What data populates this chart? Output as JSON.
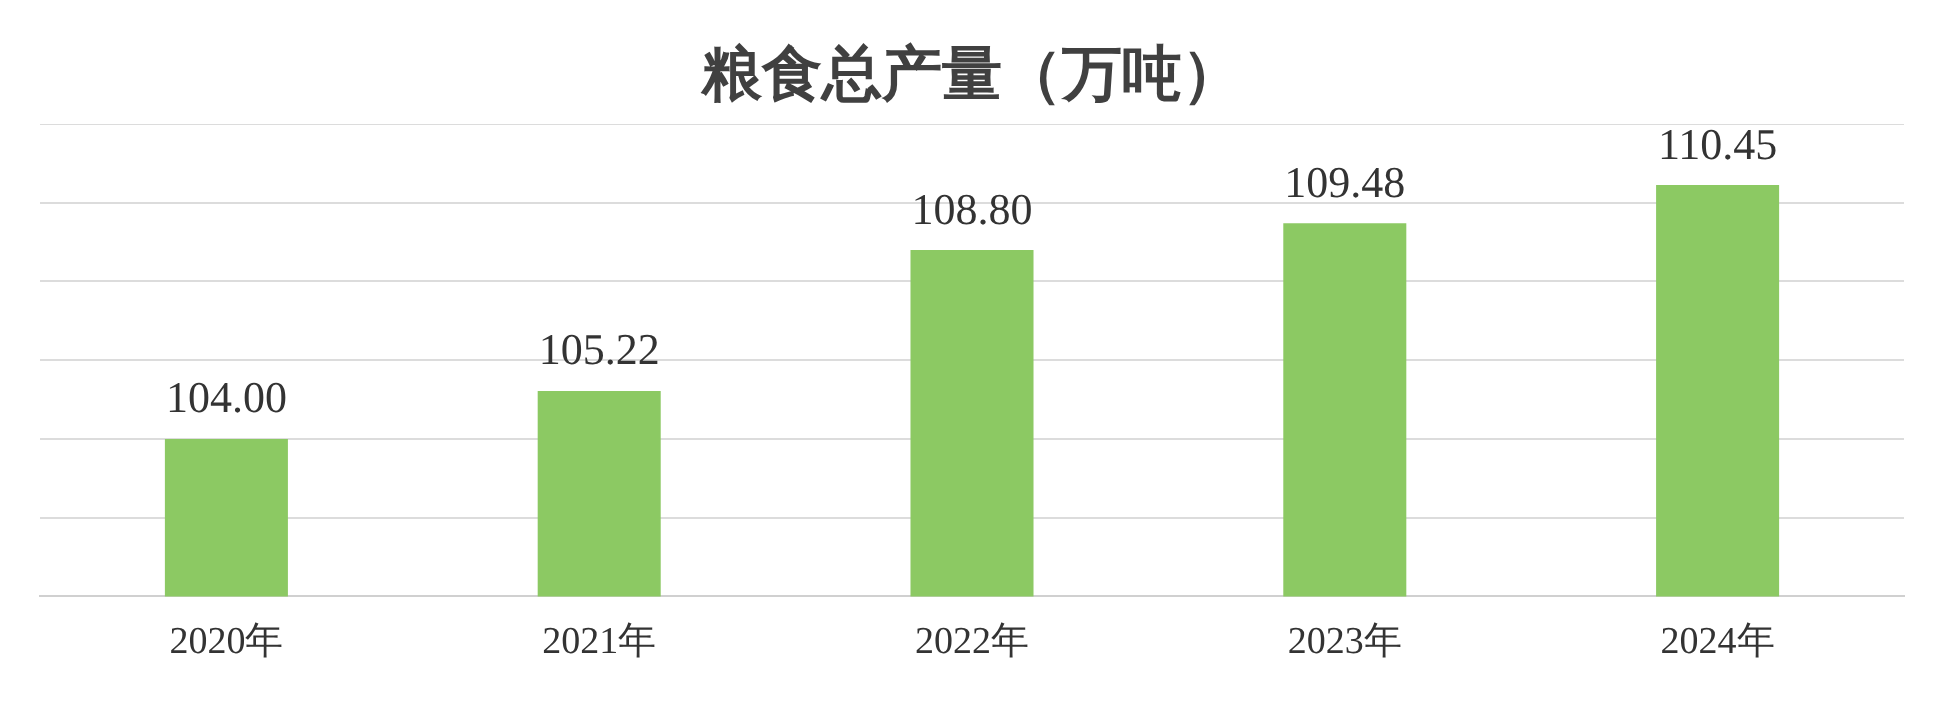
{
  "chart_data": {
    "type": "bar",
    "title": "粮食总产量（万吨）",
    "categories": [
      "2020年",
      "2021年",
      "2022年",
      "2023年",
      "2024年"
    ],
    "values": [
      104.0,
      105.22,
      108.8,
      109.48,
      110.45
    ],
    "value_labels": [
      "104.00",
      "105.22",
      "108.80",
      "109.48",
      "110.45"
    ],
    "color": "#8cc963",
    "ylim": [
      100,
      112
    ],
    "yticks": [
      {
        "value": 100,
        "label": null
      },
      {
        "value": 102,
        "label": null
      },
      {
        "value": 104,
        "label": null
      },
      {
        "value": 106,
        "label": null
      },
      {
        "value": 108,
        "label": null
      },
      {
        "value": 110,
        "label": null
      },
      {
        "value": 112,
        "label": null
      }
    ],
    "grid": "y",
    "tick_labels": "x"
  }
}
